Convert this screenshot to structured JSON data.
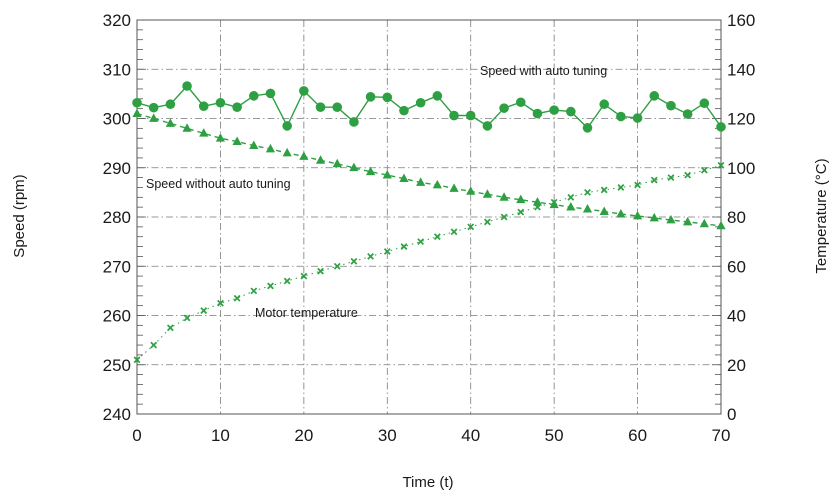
{
  "chart_data": {
    "type": "line",
    "xlabel": "Time (t)",
    "ylabel": "Speed (rpm)",
    "y2label": "Temperature (°C)",
    "xlim": [
      0,
      70
    ],
    "ylim": [
      240,
      320
    ],
    "y2lim": [
      0,
      160
    ],
    "x_ticks": [
      0,
      10,
      20,
      30,
      40,
      50,
      60,
      70
    ],
    "y_ticks": [
      240,
      250,
      260,
      270,
      280,
      290,
      300,
      310,
      320
    ],
    "y2_ticks": [
      0,
      20,
      40,
      60,
      80,
      100,
      120,
      140,
      160
    ],
    "grid": true,
    "colors": {
      "series": "#2ea043",
      "grid": "#7a7a7a",
      "axis": "#555555"
    },
    "annotations": {
      "with_tuning": "Speed with auto tuning",
      "without_tuning": "Speed without auto tuning",
      "motor_temp": "Motor temperature"
    },
    "series": [
      {
        "axis": "left",
        "marker": "circle",
        "line": "solid",
        "x": [
          0,
          2,
          4,
          6,
          8,
          10,
          12,
          14,
          16,
          18,
          20,
          22,
          24,
          26,
          28,
          30,
          32,
          34,
          36,
          38,
          40,
          42,
          44,
          46,
          48,
          50,
          52,
          54,
          56,
          58,
          60,
          62,
          64,
          66,
          68,
          70
        ],
        "values": [
          303.2,
          302.2,
          302.9,
          306.6,
          302.5,
          303.2,
          302.3,
          304.6,
          305.1,
          298.5,
          305.6,
          302.3,
          302.3,
          299.3,
          304.4,
          304.3,
          301.6,
          303.2,
          304.6,
          300.6,
          300.6,
          298.5,
          302.1,
          303.3,
          301.0,
          301.7,
          301.4,
          298.1,
          302.9,
          300.4,
          300.1,
          304.6,
          302.6,
          300.9,
          303.1,
          298.3
        ]
      },
      {
        "axis": "left",
        "marker": "triangle",
        "line": "dashed",
        "x": [
          0,
          2,
          4,
          6,
          8,
          10,
          12,
          14,
          16,
          18,
          20,
          22,
          24,
          26,
          28,
          30,
          32,
          34,
          36,
          38,
          40,
          42,
          44,
          46,
          48,
          50,
          52,
          54,
          56,
          58,
          60,
          62,
          64,
          66,
          68,
          70
        ],
        "values": [
          301.0,
          300.0,
          299.0,
          298.0,
          297.0,
          296.0,
          295.3,
          294.5,
          293.8,
          293.0,
          292.3,
          291.5,
          290.8,
          290.0,
          289.2,
          288.5,
          287.8,
          287.0,
          286.5,
          285.8,
          285.2,
          284.6,
          284.0,
          283.5,
          283.0,
          282.5,
          282.0,
          281.6,
          281.1,
          280.6,
          280.2,
          279.8,
          279.4,
          279.0,
          278.6,
          278.2
        ]
      },
      {
        "axis": "right",
        "marker": "x",
        "line": "dotted",
        "x": [
          0,
          2,
          4,
          6,
          8,
          10,
          12,
          14,
          16,
          18,
          20,
          22,
          24,
          26,
          28,
          30,
          32,
          34,
          36,
          38,
          40,
          42,
          44,
          46,
          48,
          50,
          52,
          54,
          56,
          58,
          60,
          62,
          64,
          66,
          68,
          70
        ],
        "values": [
          22,
          28,
          35,
          39,
          42,
          45,
          47,
          50,
          52,
          54,
          56,
          58,
          60,
          62,
          64,
          66,
          68,
          70,
          72,
          74,
          76,
          78,
          80,
          82,
          84,
          86,
          88,
          90,
          91,
          92,
          93,
          95,
          96,
          97,
          99,
          101
        ]
      }
    ]
  }
}
